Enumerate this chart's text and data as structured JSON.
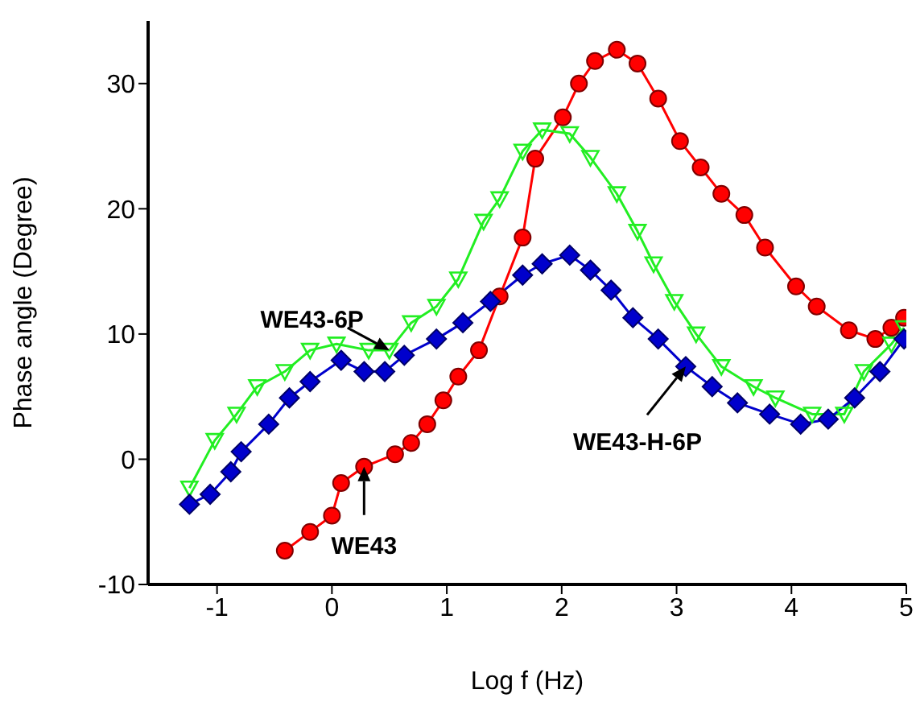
{
  "chart_data": {
    "type": "line",
    "xlabel": "Log f (Hz)",
    "ylabel": "Phase angle (Degree)",
    "xlim": [
      -1.6,
      5
    ],
    "xticks": [
      -1,
      0,
      1,
      2,
      3,
      4,
      5
    ],
    "ylim": [
      -10,
      35
    ],
    "yticks": [
      -10,
      0,
      10,
      20,
      30
    ],
    "line_style": "solid",
    "series": [
      {
        "name": "WE43",
        "color": "#ff0000",
        "marker": "circle",
        "x": [
          -0.41,
          -0.19,
          0,
          0.08,
          0.28,
          0.55,
          0.69,
          0.83,
          0.97,
          1.1,
          1.28,
          1.46,
          1.66,
          1.77,
          2.01,
          2.15,
          2.29,
          2.48,
          2.66,
          2.84,
          3.03,
          3.21,
          3.39,
          3.59,
          3.77,
          4.04,
          4.22,
          4.5,
          4.73,
          4.87,
          4.98
        ],
        "values": [
          -7.3,
          -5.8,
          -4.5,
          -1.9,
          -0.6,
          0.4,
          1.3,
          2.8,
          4.7,
          6.6,
          8.7,
          13,
          17.7,
          24,
          27.3,
          30,
          31.8,
          32.7,
          31.6,
          28.8,
          25.4,
          23.3,
          21.2,
          19.5,
          16.9,
          13.8,
          12.2,
          10.3,
          9.6,
          10.5,
          11.3
        ]
      },
      {
        "name": "WE43-6P",
        "color": "#22ee22",
        "marker": "triangle",
        "x": [
          -1.24,
          -1.02,
          -0.83,
          -0.65,
          -0.41,
          -0.19,
          0.04,
          0.32,
          0.5,
          0.69,
          0.91,
          1.1,
          1.32,
          1.46,
          1.66,
          1.83,
          2.07,
          2.25,
          2.48,
          2.66,
          2.8,
          2.98,
          3.17,
          3.39,
          3.67,
          3.86,
          4.18,
          4.46,
          4.63,
          4.87,
          4.98
        ],
        "values": [
          -2.3,
          1.5,
          3.6,
          5.8,
          7,
          8.7,
          9.2,
          8.7,
          8.7,
          10.9,
          12.2,
          14.4,
          19,
          20.8,
          24.6,
          26.3,
          26,
          24.1,
          21.2,
          18.2,
          15.6,
          12.6,
          10,
          7.4,
          5.8,
          4.9,
          3.6,
          3.6,
          7,
          9.2,
          10.5
        ]
      },
      {
        "name": "WE43-H-6P",
        "color": "#0000cc",
        "marker": "diamond",
        "x": [
          -1.24,
          -1.06,
          -0.88,
          -0.79,
          -0.55,
          -0.37,
          -0.19,
          0.08,
          0.28,
          0.46,
          0.63,
          0.91,
          1.14,
          1.38,
          1.66,
          1.83,
          2.07,
          2.25,
          2.43,
          2.62,
          2.84,
          3.08,
          3.31,
          3.53,
          3.81,
          4.08,
          4.32,
          4.55,
          4.77,
          4.98
        ],
        "values": [
          -3.6,
          -2.8,
          -1,
          0.6,
          2.8,
          4.9,
          6.2,
          7.9,
          7,
          7,
          8.3,
          9.6,
          10.9,
          12.6,
          14.7,
          15.6,
          16.3,
          15.1,
          13.5,
          11.3,
          9.6,
          7.4,
          5.8,
          4.5,
          3.6,
          2.8,
          3.2,
          4.9,
          7,
          9.6
        ]
      }
    ]
  }
}
